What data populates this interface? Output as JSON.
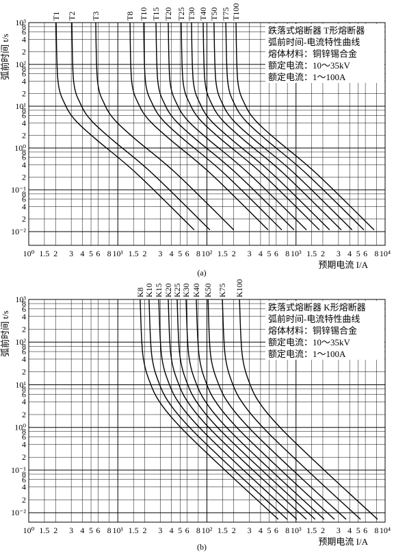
{
  "chart_data": [
    {
      "type": "line",
      "caption": "(a)",
      "x_label": "预期电流 I/A",
      "y_label": "弧前时间 t/s",
      "log_x": true,
      "log_y": true,
      "grid": true,
      "color": "#000000",
      "annotations": [
        "跌落式熔断器 T形熔断器",
        "弧前时间-电流特性曲线",
        "熔体材料：铜锌锡合金",
        "额定电流：10～35kV",
        "额定电流：1～100A"
      ],
      "xlim": [
        1,
        10000
      ],
      "ylim": [
        0.0047,
        1000
      ],
      "xticks": [
        {
          "value": 1,
          "label": "10⁰"
        },
        1.5,
        2,
        3,
        4,
        5,
        6,
        8,
        {
          "value": 10,
          "label": "10¹"
        },
        {
          "value": 15,
          "label": "1.5"
        },
        {
          "value": 20,
          "label": "2"
        },
        {
          "value": 30,
          "label": "3"
        },
        {
          "value": 40,
          "label": "4"
        },
        {
          "value": 50,
          "label": "5"
        },
        {
          "value": 60,
          "label": "6"
        },
        {
          "value": 80,
          "label": "8"
        },
        {
          "value": 100,
          "label": "10²"
        },
        {
          "value": 150,
          "label": "1.5"
        },
        {
          "value": 200,
          "label": "2"
        },
        {
          "value": 300,
          "label": "3"
        },
        {
          "value": 400,
          "label": "4"
        },
        {
          "value": 500,
          "label": "5"
        },
        {
          "value": 600,
          "label": "6"
        },
        {
          "value": 800,
          "label": "8"
        },
        {
          "value": 1000,
          "label": "10³"
        },
        {
          "value": 1500,
          "label": "1.5"
        },
        {
          "value": 2000,
          "label": "2"
        },
        {
          "value": 3000,
          "label": "3"
        },
        {
          "value": 4000,
          "label": "4"
        },
        {
          "value": 5000,
          "label": "5"
        },
        {
          "value": 6000,
          "label": "6"
        },
        {
          "value": 8000,
          "label": "8"
        },
        {
          "value": 10000,
          "label": "10⁴"
        }
      ],
      "yticks": [
        {
          "value": 0.01,
          "label": "10⁻²"
        },
        {
          "value": 0.02,
          "label": "2"
        },
        {
          "value": 0.04,
          "label": "4"
        },
        {
          "value": 0.06,
          "label": "6"
        },
        {
          "value": 0.08,
          "label": "8"
        },
        {
          "value": 0.1,
          "label": "10⁻¹"
        },
        {
          "value": 0.2,
          "label": "2"
        },
        {
          "value": 0.4,
          "label": "4"
        },
        {
          "value": 0.6,
          "label": "6"
        },
        {
          "value": 0.8,
          "label": "8"
        },
        {
          "value": 1,
          "label": "10⁰"
        },
        2,
        4,
        6,
        8,
        {
          "value": 10,
          "label": "10¹"
        },
        {
          "value": 20,
          "label": "2"
        },
        {
          "value": 40,
          "label": "4"
        },
        {
          "value": 60,
          "label": "6"
        },
        {
          "value": 80,
          "label": "8"
        },
        {
          "value": 100,
          "label": "10²"
        },
        {
          "value": 200,
          "label": "2"
        },
        {
          "value": 400,
          "label": "4"
        },
        {
          "value": 600,
          "label": "6"
        },
        {
          "value": 800,
          "label": "8"
        },
        {
          "value": 1000,
          "label": "10³"
        }
      ],
      "series": [
        {
          "name": "T1",
          "x": [
            2.03,
            2.13,
            2.56,
            3.37,
            5.72,
            16.1,
            72.0
          ],
          "values": [
            1000,
            40,
            11,
            4.5,
            1.6,
            0.25,
            0.011
          ]
        },
        {
          "name": "T2",
          "x": [
            3.05,
            3.19,
            3.84,
            5.06,
            8.59,
            24.2,
            108
          ],
          "values": [
            1000,
            40,
            11,
            4.5,
            1.6,
            0.25,
            0.011
          ]
        },
        {
          "name": "T3",
          "x": [
            5.65,
            5.92,
            7.11,
            9.38,
            15.9,
            44.9,
            200
          ],
          "values": [
            1000,
            40,
            11,
            4.5,
            1.6,
            0.25,
            0.011
          ]
        },
        {
          "name": "T8",
          "x": [
            13.7,
            14.3,
            17.2,
            22.7,
            38.6,
            109,
            486
          ],
          "values": [
            1000,
            40,
            11,
            4.5,
            1.6,
            0.25,
            0.011
          ]
        },
        {
          "name": "T10",
          "x": [
            19.5,
            20.4,
            24.6,
            32.4,
            55.0,
            155,
            692
          ],
          "values": [
            1000,
            40,
            11,
            4.5,
            1.6,
            0.25,
            0.011
          ]
        },
        {
          "name": "T15",
          "x": [
            26.8,
            28.1,
            33.7,
            44.5,
            75.5,
            213,
            951
          ],
          "values": [
            1000,
            40,
            11,
            4.5,
            1.6,
            0.25,
            0.011
          ]
        },
        {
          "name": "T20",
          "x": [
            36.8,
            38.5,
            46.3,
            61.1,
            104,
            292,
            1310
          ],
          "values": [
            1000,
            40,
            11,
            4.5,
            1.6,
            0.25,
            0.011
          ]
        },
        {
          "name": "T25",
          "x": [
            51.5,
            53.9,
            64.8,
            85.5,
            145,
            409,
            1830
          ],
          "values": [
            1000,
            40,
            11,
            4.5,
            1.6,
            0.25,
            0.011
          ]
        },
        {
          "name": "T30",
          "x": [
            67.1,
            70.3,
            84.5,
            111,
            189,
            533,
            2380
          ],
          "values": [
            1000,
            40,
            11,
            4.5,
            1.6,
            0.25,
            0.011
          ]
        },
        {
          "name": "T40",
          "x": [
            90.7,
            95.0,
            114,
            151,
            256,
            720,
            3220
          ],
          "values": [
            1000,
            40,
            11,
            4.5,
            1.6,
            0.25,
            0.011
          ]
        },
        {
          "name": "T50",
          "x": [
            120,
            126,
            151,
            199,
            338,
            953,
            4260
          ],
          "values": [
            1000,
            40,
            11,
            4.5,
            1.6,
            0.25,
            0.011
          ]
        },
        {
          "name": "T75",
          "x": [
            163,
            171,
            205,
            271,
            459,
            1290,
            5780
          ],
          "values": [
            1000,
            40,
            11,
            4.5,
            1.6,
            0.25,
            0.011
          ]
        },
        {
          "name": "T100",
          "x": [
            212,
            222,
            267,
            352,
            597,
            1680,
            7520
          ],
          "values": [
            1000,
            40,
            11,
            4.5,
            1.6,
            0.25,
            0.011
          ]
        }
      ]
    },
    {
      "type": "line",
      "caption": "(b)",
      "x_label": "预期电流 I/A",
      "y_label": "弧前时间 t/s",
      "log_x": true,
      "log_y": true,
      "grid": true,
      "color": "#000000",
      "annotations": [
        "跌落式熔断器 K形熔断器",
        "弧前时间-电流特性曲线",
        "熔体材料：铜锌锡合金",
        "额定电流：10～35kV",
        "额定电流：1～100A"
      ],
      "xlim": [
        1,
        10000
      ],
      "ylim": [
        0.006,
        1000
      ],
      "xticks": [
        {
          "value": 1,
          "label": "10⁰"
        },
        1.5,
        2,
        3,
        4,
        5,
        6,
        8,
        {
          "value": 10,
          "label": "10¹"
        },
        {
          "value": 15,
          "label": "1.5"
        },
        {
          "value": 20,
          "label": "2"
        },
        {
          "value": 30,
          "label": "3"
        },
        {
          "value": 40,
          "label": "4"
        },
        {
          "value": 50,
          "label": "5"
        },
        {
          "value": 60,
          "label": "6"
        },
        {
          "value": 80,
          "label": "8"
        },
        {
          "value": 100,
          "label": "10²"
        },
        {
          "value": 150,
          "label": "1.5"
        },
        {
          "value": 200,
          "label": "2"
        },
        {
          "value": 300,
          "label": "3"
        },
        {
          "value": 400,
          "label": "4"
        },
        {
          "value": 500,
          "label": "5"
        },
        {
          "value": 600,
          "label": "6"
        },
        {
          "value": 800,
          "label": "8"
        },
        {
          "value": 1000,
          "label": "10³"
        },
        {
          "value": 1500,
          "label": "1.5"
        },
        {
          "value": 2000,
          "label": "2"
        },
        {
          "value": 3000,
          "label": "3"
        },
        {
          "value": 4000,
          "label": "4"
        },
        {
          "value": 5000,
          "label": "5"
        },
        {
          "value": 6000,
          "label": "6"
        },
        {
          "value": 8000,
          "label": "8"
        },
        {
          "value": 10000,
          "label": "10⁴"
        }
      ],
      "yticks": [
        {
          "value": 0.01,
          "label": "10⁻²"
        },
        {
          "value": 0.02,
          "label": "2"
        },
        {
          "value": 0.04,
          "label": "4"
        },
        {
          "value": 0.06,
          "label": "6"
        },
        {
          "value": 0.08,
          "label": "8"
        },
        {
          "value": 0.1,
          "label": "10⁻¹"
        },
        {
          "value": 0.2,
          "label": "2"
        },
        {
          "value": 0.4,
          "label": "4"
        },
        {
          "value": 0.6,
          "label": "6"
        },
        {
          "value": 0.8,
          "label": "8"
        },
        {
          "value": 1,
          "label": "10⁰"
        },
        2,
        4,
        6,
        8,
        {
          "value": 10,
          "label": "10¹"
        },
        {
          "value": 20,
          "label": "2"
        },
        {
          "value": 40,
          "label": "4"
        },
        {
          "value": 60,
          "label": "6"
        },
        {
          "value": 80,
          "label": "8"
        },
        {
          "value": 100,
          "label": "10²"
        },
        {
          "value": 200,
          "label": "2"
        },
        {
          "value": 400,
          "label": "4"
        },
        {
          "value": 600,
          "label": "6"
        },
        {
          "value": 800,
          "label": "8"
        },
        {
          "value": 1000,
          "label": "10³"
        }
      ],
      "series": [
        {
          "name": "K8",
          "x": [
            17.8,
            19.1,
            23.5,
            31.6,
            56.3,
            159,
            632
          ],
          "values": [
            1000,
            50,
            10,
            3.2,
            0.8,
            0.1,
            0.007
          ]
        },
        {
          "name": "K10",
          "x": [
            22.4,
            24.0,
            29.5,
            39.8,
            70.8,
            200,
            795
          ],
          "values": [
            1000,
            50,
            10,
            3.2,
            0.8,
            0.1,
            0.007
          ]
        },
        {
          "name": "K15",
          "x": [
            28.8,
            30.9,
            38.0,
            51.2,
            91.1,
            257,
            1020
          ],
          "values": [
            1000,
            50,
            10,
            3.2,
            0.8,
            0.1,
            0.007
          ]
        },
        {
          "name": "K20",
          "x": [
            36.8,
            39.4,
            48.5,
            65.4,
            116,
            328,
            1310
          ],
          "values": [
            1000,
            50,
            10,
            3.2,
            0.8,
            0.1,
            0.007
          ]
        },
        {
          "name": "K25",
          "x": [
            46.3,
            49.6,
            61.0,
            82.3,
            146,
            413,
            1640
          ],
          "values": [
            1000,
            50,
            10,
            3.2,
            0.8,
            0.1,
            0.007
          ]
        },
        {
          "name": "K30",
          "x": [
            58.3,
            62.5,
            76.8,
            104,
            184,
            520,
            2070
          ],
          "values": [
            1000,
            50,
            10,
            3.2,
            0.8,
            0.1,
            0.007
          ]
        },
        {
          "name": "K40",
          "x": [
            76.0,
            81.5,
            100,
            135,
            240,
            677,
            2700
          ],
          "values": [
            1000,
            50,
            10,
            3.2,
            0.8,
            0.1,
            0.007
          ]
        },
        {
          "name": "K50",
          "x": [
            103,
            110,
            136,
            183,
            326,
            918,
            3650
          ],
          "values": [
            1000,
            50,
            10,
            3.2,
            0.8,
            0.1,
            0.007
          ]
        },
        {
          "name": "K75",
          "x": [
            149,
            160,
            196,
            265,
            471,
            1330,
            5290
          ],
          "values": [
            1000,
            50,
            10,
            3.2,
            0.8,
            0.1,
            0.007
          ]
        },
        {
          "name": "K100",
          "x": [
            232,
            249,
            306,
            412,
            734,
            2070,
            8230
          ],
          "values": [
            1000,
            50,
            10,
            3.2,
            0.8,
            0.1,
            0.007
          ]
        }
      ]
    }
  ]
}
